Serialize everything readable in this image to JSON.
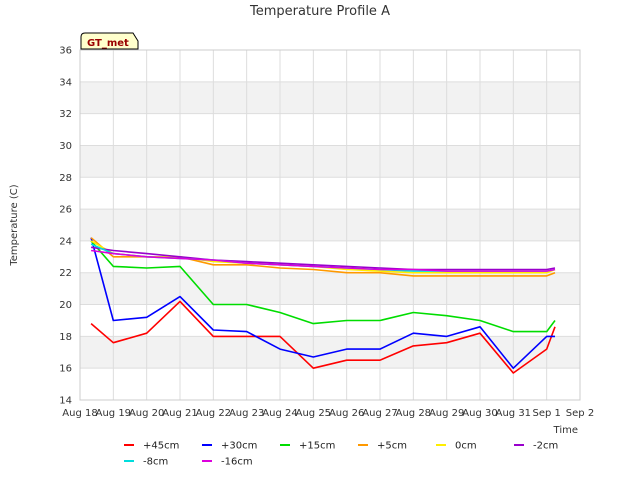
{
  "chart_data": {
    "type": "line",
    "title": "Temperature Profile A",
    "xlabel": "Time",
    "ylabel": "Temperature (C)",
    "badge": "GT_met",
    "ylim": [
      14,
      36
    ],
    "yticks": [
      14,
      16,
      18,
      20,
      22,
      24,
      26,
      28,
      30,
      32,
      34,
      36
    ],
    "xlim": [
      "2024-08-18",
      "2024-09-02"
    ],
    "xtick_labels": [
      "Aug 18",
      "Aug 19",
      "Aug 20",
      "Aug 21",
      "Aug 22",
      "Aug 23",
      "Aug 24",
      "Aug 25",
      "Aug 26",
      "Aug 27",
      "Aug 28",
      "Aug 29",
      "Aug 30",
      "Aug 31",
      "Sep 1",
      "Sep 2"
    ],
    "x_dates": [
      "2024-08-18T08:00",
      "2024-08-19T00:00",
      "2024-08-20T00:00",
      "2024-08-21T00:00",
      "2024-08-22T00:00",
      "2024-08-23T00:00",
      "2024-08-24T00:00",
      "2024-08-25T00:00",
      "2024-08-26T00:00",
      "2024-08-27T00:00",
      "2024-08-28T00:00",
      "2024-08-29T00:00",
      "2024-08-30T00:00",
      "2024-08-31T00:00",
      "2024-09-01T00:00",
      "2024-09-01T06:00"
    ],
    "grid": true,
    "legend_position": "bottom",
    "series": [
      {
        "name": "+45cm",
        "color": "#ff0000",
        "values": [
          18.8,
          17.6,
          18.2,
          20.2,
          18.0,
          18.0,
          18.0,
          16.0,
          16.5,
          16.5,
          17.4,
          17.6,
          18.2,
          15.7,
          17.2,
          18.6
        ]
      },
      {
        "name": "+30cm",
        "color": "#0000ff",
        "values": [
          24.2,
          19.0,
          19.2,
          20.5,
          18.4,
          18.3,
          17.2,
          16.7,
          17.2,
          17.2,
          18.2,
          18.0,
          18.6,
          16.0,
          18.0,
          18.0
        ]
      },
      {
        "name": "+15cm",
        "color": "#00dd00",
        "values": [
          24.0,
          22.4,
          22.3,
          22.4,
          20.0,
          20.0,
          19.5,
          18.8,
          19.0,
          19.0,
          19.5,
          19.3,
          19.0,
          18.3,
          18.3,
          19.0
        ]
      },
      {
        "name": "+5cm",
        "color": "#ff9900",
        "values": [
          24.2,
          23.0,
          23.0,
          23.0,
          22.5,
          22.5,
          22.3,
          22.2,
          22.0,
          22.0,
          21.8,
          21.8,
          21.8,
          21.8,
          21.8,
          22.0
        ]
      },
      {
        "name": "0cm",
        "color": "#ffee00",
        "values": [
          24.0,
          23.2,
          23.0,
          23.0,
          22.7,
          22.6,
          22.5,
          22.4,
          22.2,
          22.1,
          22.0,
          22.0,
          22.0,
          22.0,
          22.0,
          22.2
        ]
      },
      {
        "name": "-2cm",
        "color": "#9900cc",
        "values": [
          23.6,
          23.4,
          23.2,
          23.0,
          22.8,
          22.7,
          22.6,
          22.5,
          22.4,
          22.3,
          22.2,
          22.2,
          22.2,
          22.2,
          22.2,
          22.3
        ]
      },
      {
        "name": "-8cm",
        "color": "#00dddd",
        "values": [
          23.8,
          23.2,
          23.0,
          22.9,
          22.8,
          22.6,
          22.5,
          22.4,
          22.3,
          22.2,
          22.1,
          22.1,
          22.1,
          22.1,
          22.1,
          22.2
        ]
      },
      {
        "name": "-16cm",
        "color": "#dd00dd",
        "values": [
          23.4,
          23.2,
          23.0,
          22.9,
          22.8,
          22.6,
          22.5,
          22.4,
          22.3,
          22.2,
          22.2,
          22.1,
          22.1,
          22.1,
          22.1,
          22.2
        ]
      }
    ]
  }
}
